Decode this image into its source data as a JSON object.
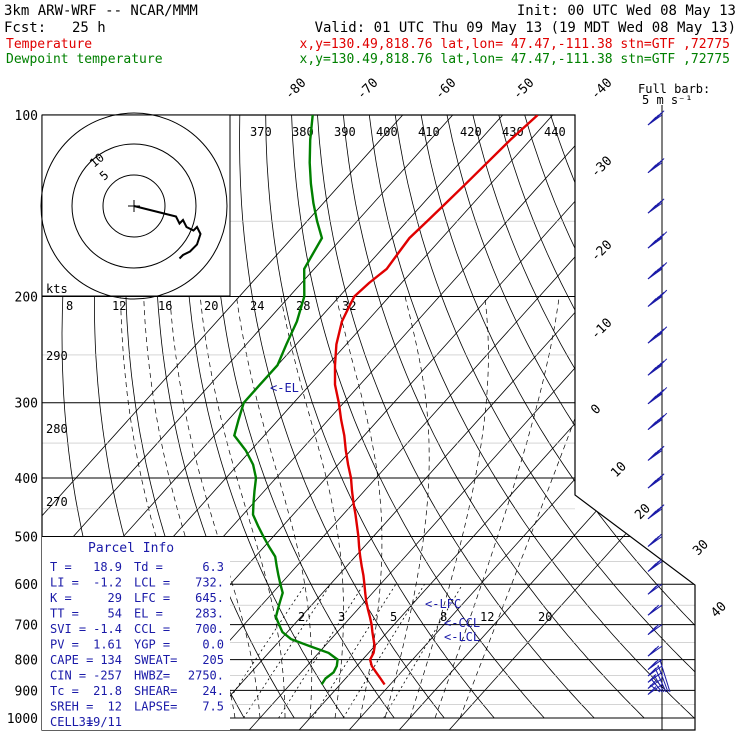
{
  "header": {
    "model": "3km ARW-WRF -- NCAR/MMM",
    "init": "Init: 00 UTC Wed 08 May 13",
    "fcst_label": "Fcst:",
    "fcst_value": "25 h",
    "valid": "Valid: 01 UTC Thu 09 May 13 (19 MDT Wed 08 May 13)",
    "temp_label": "Temperature",
    "temp_loc": "x,y=130.49,818.76   lat,lon= 47.47,-111.38  stn=GTF ,72775",
    "dew_label": "Dewpoint temperature",
    "dew_loc": "x,y=130.49,818.76   lat,lon= 47.47,-111.38  stn=GTF ,72775"
  },
  "barb_key": {
    "line1": "Full barb:",
    "line2": "5 m s⁻¹"
  },
  "hodograph": {
    "kts_label": "kts",
    "rings": [
      {
        "label": "5",
        "r": 5
      },
      {
        "label": "10",
        "r": 10
      }
    ],
    "points": [
      [
        0,
        0
      ],
      [
        4,
        -1
      ],
      [
        8,
        -2
      ],
      [
        12,
        -3
      ],
      [
        13,
        -5
      ],
      [
        14,
        -4
      ],
      [
        15,
        -6
      ],
      [
        17,
        -7
      ],
      [
        18,
        -6
      ],
      [
        19,
        -8
      ],
      [
        18,
        -11
      ],
      [
        16,
        -13
      ],
      [
        14,
        -14
      ],
      [
        13,
        -15
      ]
    ]
  },
  "parcel": {
    "title": "Parcel Info",
    "rows": [
      [
        "T   =",
        "18.9",
        "Td  =",
        "6.3"
      ],
      [
        "LI  =",
        "-1.2",
        "LCL =",
        "732."
      ],
      [
        "K   =",
        "29",
        "LFC =",
        "645."
      ],
      [
        "TT  =",
        "54",
        "EL  =",
        "283."
      ],
      [
        "SVI =",
        "-1.4",
        "CCL =",
        "700."
      ],
      [
        "PV  =",
        "1.61",
        "YGP =",
        "0.0"
      ],
      [
        "CAPE =",
        "134",
        "SWEAT=",
        "205"
      ],
      [
        "CIN  =",
        "-257",
        "HWBZ=",
        "2750."
      ],
      [
        "Tc  =",
        "21.8",
        "SHEAR=",
        "24."
      ],
      [
        "SREH =",
        "12",
        "LAPSE=",
        "7.5"
      ],
      [
        "CELL =",
        "319/11",
        "",
        ""
      ]
    ]
  },
  "levels_labels": {
    "el": "<-EL",
    "lfc": "<-LFC",
    "ccl": "<-CCL",
    "lcl": "<-LCL"
  },
  "colors": {
    "temperature": "#e00000",
    "dewpoint": "#008000",
    "parcel_text": "#1a1aa8",
    "barbs": "#1a1aa8"
  },
  "chart_data": {
    "type": "line",
    "title": "",
    "xlabel": "",
    "ylabel": "",
    "pressure_levels": [
      100,
      200,
      300,
      400,
      500,
      600,
      700,
      800,
      900,
      1000
    ],
    "pressure_range": [
      1000,
      100
    ],
    "temperature_range": [
      -45,
      45
    ],
    "isotherms": [
      -80,
      -70,
      -60,
      -50,
      -40,
      -30,
      -20,
      -10,
      0,
      10,
      20,
      30,
      40
    ],
    "theta_labels": [
      370,
      380,
      390,
      400,
      410,
      420,
      430,
      440
    ],
    "theta_low_labels": [
      290,
      280,
      270
    ],
    "mixing_ratio_labels": [
      2,
      3,
      5,
      8,
      12,
      20
    ],
    "top_ticks": [
      8,
      12,
      16,
      20,
      24,
      28,
      32
    ],
    "series": [
      {
        "name": "Temperature",
        "p": [
          880,
          860,
          840,
          820,
          800,
          780,
          760,
          740,
          720,
          700,
          680,
          660,
          640,
          620,
          600,
          580,
          560,
          540,
          520,
          500,
          480,
          460,
          440,
          420,
          400,
          380,
          360,
          340,
          320,
          300,
          280,
          260,
          240,
          220,
          210,
          200,
          190,
          180,
          170,
          160,
          150,
          140,
          130,
          120,
          110,
          100
        ],
        "t": [
          18.9,
          17,
          15,
          13,
          11.5,
          11,
          10,
          8.5,
          7,
          5.5,
          3.8,
          2,
          0.2,
          -1.5,
          -3.2,
          -5,
          -7,
          -9,
          -11,
          -13,
          -15.2,
          -17.5,
          -20,
          -22.5,
          -25,
          -28,
          -31,
          -34,
          -37.5,
          -41,
          -45,
          -48.5,
          -52,
          -55,
          -56,
          -57,
          -56.5,
          -55.5,
          -56,
          -56.5,
          -56,
          -55.5,
          -55,
          -54.5,
          -54,
          -53
        ]
      },
      {
        "name": "Dewpoint temperature",
        "p": [
          880,
          860,
          840,
          820,
          800,
          780,
          760,
          740,
          720,
          700,
          680,
          660,
          640,
          620,
          600,
          580,
          560,
          540,
          520,
          500,
          480,
          460,
          440,
          420,
          400,
          380,
          360,
          340,
          320,
          300,
          280,
          260,
          240,
          220,
          200,
          180,
          160,
          150,
          140,
          130,
          120,
          110,
          100
        ],
        "t": [
          6.3,
          6,
          6.5,
          6,
          5,
          2,
          -3,
          -8,
          -11,
          -13,
          -15,
          -16,
          -17,
          -18,
          -20,
          -22,
          -24,
          -26,
          -29,
          -32,
          -35,
          -38,
          -40,
          -42,
          -44,
          -47,
          -51,
          -56,
          -58,
          -60,
          -60,
          -60,
          -62,
          -64,
          -67,
          -72,
          -74,
          -78,
          -82,
          -86,
          -90,
          -94,
          -98
        ]
      }
    ],
    "wind_barbs": [
      {
        "p": 880,
        "speed_ms": 5
      },
      {
        "p": 860,
        "speed_ms": 6
      },
      {
        "p": 840,
        "speed_ms": 7
      },
      {
        "p": 820,
        "speed_ms": 8
      },
      {
        "p": 800,
        "speed_ms": 9
      },
      {
        "p": 760,
        "speed_ms": 10
      },
      {
        "p": 700,
        "speed_ms": 10
      },
      {
        "p": 650,
        "speed_ms": 12
      },
      {
        "p": 600,
        "speed_ms": 12
      },
      {
        "p": 550,
        "speed_ms": 14
      },
      {
        "p": 500,
        "speed_ms": 15
      },
      {
        "p": 450,
        "speed_ms": 18
      },
      {
        "p": 400,
        "speed_ms": 20
      },
      {
        "p": 360,
        "speed_ms": 22
      },
      {
        "p": 320,
        "speed_ms": 24
      },
      {
        "p": 290,
        "speed_ms": 26
      },
      {
        "p": 260,
        "speed_ms": 28
      },
      {
        "p": 230,
        "speed_ms": 30
      },
      {
        "p": 200,
        "speed_ms": 30
      },
      {
        "p": 180,
        "speed_ms": 28
      },
      {
        "p": 160,
        "speed_ms": 25
      },
      {
        "p": 140,
        "speed_ms": 22
      },
      {
        "p": 120,
        "speed_ms": 20
      },
      {
        "p": 100,
        "speed_ms": 18
      }
    ],
    "grid": true
  }
}
